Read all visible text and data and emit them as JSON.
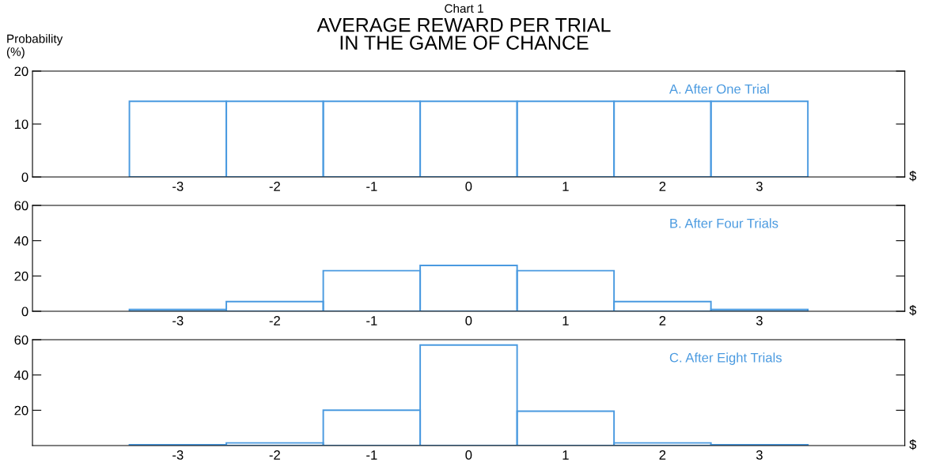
{
  "chart_data": [
    {
      "type": "histogram",
      "subtitle": "Chart 1",
      "title": "AVERAGE REWARD PER TRIAL\nIN THE GAME OF CHANCE",
      "ylabel": "Probability\n(%)",
      "xlabel": "$",
      "annotations": [
        "A. After One Trial"
      ],
      "bins": [
        -3.5,
        -2.5,
        -1.5,
        -0.5,
        0.5,
        1.5,
        2.5,
        3.5
      ],
      "values": [
        14.3,
        14.3,
        14.3,
        14.3,
        14.3,
        14.3,
        14.3
      ],
      "color": "#4a9ae0",
      "xlim": [
        -4.5,
        4.5
      ],
      "xticks": [
        -3,
        -2,
        -1,
        0,
        1,
        2,
        3
      ],
      "ylim": [
        0,
        20
      ],
      "yticks": [
        0,
        10,
        20
      ]
    },
    {
      "type": "histogram",
      "xlabel": "$",
      "annotations": [
        "B. After Four Trials"
      ],
      "bins": [
        -3.5,
        -2.5,
        -1.5,
        -0.5,
        0.5,
        1.5,
        2.5,
        3.5
      ],
      "values": [
        1,
        5.5,
        23,
        26,
        23,
        5.5,
        1
      ],
      "color": "#4a9ae0",
      "xlim": [
        -4.5,
        4.5
      ],
      "xticks": [
        -3,
        -2,
        -1,
        0,
        1,
        2,
        3
      ],
      "ylim": [
        0,
        60
      ],
      "yticks": [
        0,
        20,
        40,
        60
      ]
    },
    {
      "type": "histogram",
      "xlabel": "$",
      "annotations": [
        "C. After Eight Trials"
      ],
      "bins": [
        -3.5,
        -2.5,
        -1.5,
        -0.5,
        0.5,
        1.5,
        2.5,
        3.5
      ],
      "values": [
        0.5,
        1.5,
        20,
        57,
        19.5,
        1.5,
        0.5
      ],
      "color": "#4a9ae0",
      "xlim": [
        -4.5,
        4.5
      ],
      "xticks": [
        -3,
        -2,
        -1,
        0,
        1,
        2,
        3
      ],
      "ylim": [
        0,
        60
      ],
      "yticks": [
        20,
        40,
        60
      ]
    }
  ]
}
